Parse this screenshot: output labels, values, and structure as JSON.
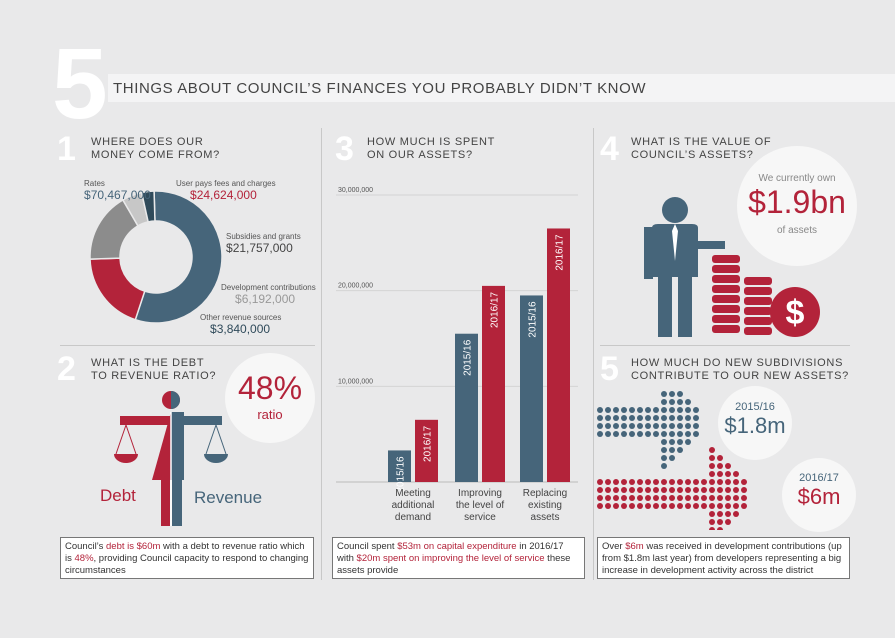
{
  "header": {
    "number": "5",
    "title": "THINGS ABOUT COUNCIL’S FINANCES YOU PROBABLY DIDN’T KNOW"
  },
  "colors": {
    "red": "#b3233a",
    "blue": "#46657a",
    "grey": "#8c8c8c",
    "light_grey": "#c7c7c7",
    "dark_slate": "#2f4a5a"
  },
  "s1": {
    "num": "1",
    "line1": "WHERE DOES OUR",
    "line2": "MONEY COME FROM?"
  },
  "s2": {
    "num": "2",
    "line1": "WHAT IS THE DEBT",
    "line2": "TO REVENUE RATIO?",
    "ratio": "48%",
    "ratio_label": "ratio",
    "debt_label": "Debt",
    "revenue_label": "Revenue",
    "note": {
      "p1": "Council’s ",
      "h1": "debt is $60m",
      "p2": " with a debt to revenue ratio which is ",
      "h2": "48%",
      "p3": ", providing Council capacity to respond to changing circumstances"
    }
  },
  "s3": {
    "num": "3",
    "line1": "HOW MUCH IS SPENT",
    "line2": "ON OUR ASSETS?",
    "note": {
      "p1": "Council spent ",
      "h1": "$53m on capital expenditure",
      "p2": " in 2016/17 with ",
      "h2": "$20m spent on improving the level of service",
      "p3": " these assets provide"
    }
  },
  "s4": {
    "num": "4",
    "line1": "WHAT IS THE VALUE OF",
    "line2": "COUNCIL’S ASSETS?",
    "top": "We currently own",
    "value": "$1.9bn",
    "bottom": "of assets",
    "icon": "dollar-coin-icon"
  },
  "s5": {
    "num": "5",
    "line1": "HOW MUCH DO NEW SUBDIVISIONS",
    "line2": "CONTRIBUTE TO OUR NEW ASSETS?",
    "c1": {
      "year": "2015/16",
      "value": "$1.8m"
    },
    "c2": {
      "year": "2016/17",
      "value": "$6m"
    },
    "note": {
      "p1": "Over ",
      "h1": "$6m",
      "p2": " was received in development contributions (up from $1.8m last year) from developers representing a big increase in development activity across the district"
    }
  },
  "chart_data": [
    {
      "type": "pie",
      "title": "WHERE DOES OUR MONEY COME FROM?",
      "slices": [
        {
          "label": "Rates",
          "value": 70467000,
          "display": "70,467,000",
          "prefix": "$",
          "color": "#46657a"
        },
        {
          "label": "User pays fees and charges",
          "value": 24624000,
          "display": "24,624,000",
          "prefix": "$",
          "color": "#b3233a"
        },
        {
          "label": "Subsidies and grants",
          "value": 21757000,
          "display": "21,757,000",
          "prefix": "$",
          "color": "#8c8c8c"
        },
        {
          "label": "Development contributions",
          "value": 6192000,
          "display": "6,192,000",
          "prefix": "$",
          "color": "#c7c7c7"
        },
        {
          "label": "Other revenue sources",
          "value": 3840000,
          "display": "3,840,000",
          "prefix": "$",
          "color": "#2f4a5a"
        }
      ]
    },
    {
      "type": "bar",
      "title": "HOW MUCH IS SPENT ON OUR ASSETS?",
      "categories": [
        [
          "Meeting",
          "additional",
          "demand"
        ],
        [
          "Improving",
          "the level of",
          "service"
        ],
        [
          "Replacing",
          "existing",
          "assets"
        ]
      ],
      "series": [
        {
          "name": "2015/16",
          "values": [
            3300000,
            15500000,
            19500000
          ],
          "color": "#46657a"
        },
        {
          "name": "2016/17",
          "values": [
            6500000,
            20500000,
            26500000
          ],
          "color": "#b3233a"
        }
      ],
      "ylim": [
        0,
        30000000
      ],
      "yticks": [
        {
          "value": 10000000,
          "label": "10,000,000"
        },
        {
          "value": 20000000,
          "label": "20,000,000"
        },
        {
          "value": 30000000,
          "label": "30,000,000"
        }
      ]
    }
  ]
}
